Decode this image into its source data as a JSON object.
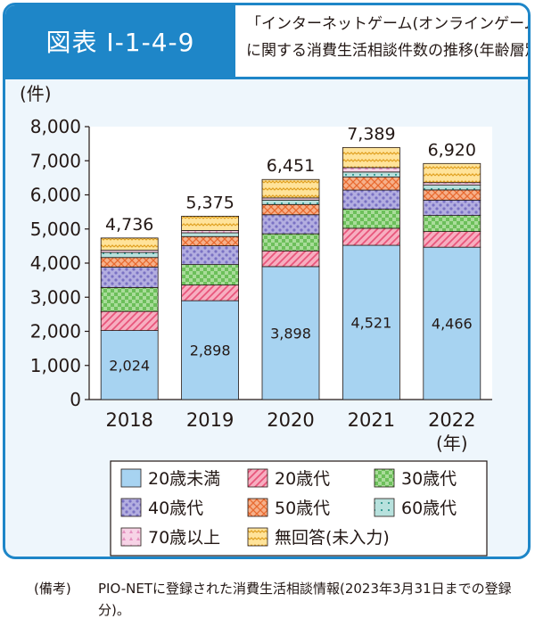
{
  "header": {
    "badge": "図表 I-1-4-9",
    "title_line1": "「インターネットゲーム(オンラインゲーム)」",
    "title_line2": "に関する消費生活相談件数の推移(年齢層別)"
  },
  "colors": {
    "frame": "#1e86c8",
    "s0": "#a7d3f1",
    "s1": "#f7aec0",
    "s2": "#a9dc9a",
    "s3": "#b3aee0",
    "s4": "#f6b08a",
    "s5": "#b7e1dd",
    "s6": "#f7d3e6",
    "s7": "#ffe39a"
  },
  "chart_data": {
    "type": "bar",
    "stacked": true,
    "unit_label": "(件)",
    "xunit": "(年)",
    "ylim": [
      0,
      8000
    ],
    "yticks": [
      0,
      1000,
      2000,
      3000,
      4000,
      5000,
      6000,
      7000,
      8000
    ],
    "ytick_labels": [
      "0",
      "1,000",
      "2,000",
      "3,000",
      "4,000",
      "5,000",
      "6,000",
      "7,000",
      "8,000"
    ],
    "categories": [
      "2018",
      "2019",
      "2020",
      "2021",
      "2022"
    ],
    "totals": [
      4736,
      5375,
      6451,
      7389,
      6920
    ],
    "total_labels": [
      "4,736",
      "5,375",
      "6,451",
      "7,389",
      "6,920"
    ],
    "inner_labels": [
      "2,024",
      "2,898",
      "3,898",
      "4,521",
      "4,466"
    ],
    "series": [
      {
        "name": "20歳未満",
        "values": [
          2024,
          2898,
          3898,
          4521,
          4466
        ]
      },
      {
        "name": "20歳代",
        "values": [
          560,
          460,
          460,
          500,
          460
        ]
      },
      {
        "name": "30歳代",
        "values": [
          700,
          600,
          500,
          560,
          470
        ]
      },
      {
        "name": "40歳代",
        "values": [
          600,
          550,
          560,
          560,
          450
        ]
      },
      {
        "name": "50歳代",
        "values": [
          280,
          270,
          300,
          380,
          300
        ]
      },
      {
        "name": "60歳代",
        "values": [
          150,
          110,
          130,
          150,
          140
        ]
      },
      {
        "name": "70歳以上",
        "values": [
          62,
          67,
          63,
          128,
          74
        ]
      },
      {
        "name": "無回答(未入力)",
        "values": [
          360,
          420,
          540,
          590,
          560
        ]
      }
    ],
    "legend_position": "bottom"
  },
  "note": {
    "label": "(備考)",
    "text": "PIO-NETに登録された消費生活相談情報(2023年3月31日までの登録分)。"
  }
}
